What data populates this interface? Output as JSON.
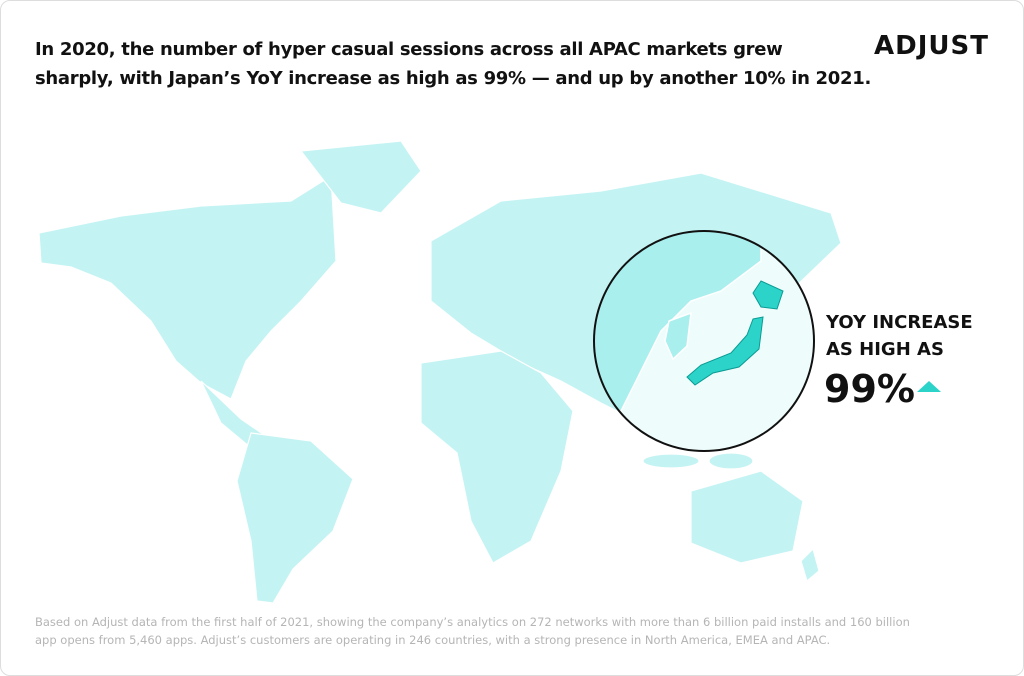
{
  "header": {
    "title": [
      "In 2020, the number of hyper casual sessions across all APAC markets grew",
      "sharply, with Japan’s YoY increase as high as 99% — and up by another 10% in 2021."
    ],
    "brand": "ADJUST"
  },
  "callout": {
    "label": [
      "YOY INCREASE",
      "AS HIGH AS"
    ],
    "value": "99%"
  },
  "footnote": [
    "Based on Adjust data from the first half of 2021, showing the company’s analytics on 272 networks with more than 6 billion paid installs and 160 billion",
    "app opens from 5,460 apps. Adjust’s customers are operating in 246 countries, with a strong presence in North America, EMEA and APAC."
  ]
}
